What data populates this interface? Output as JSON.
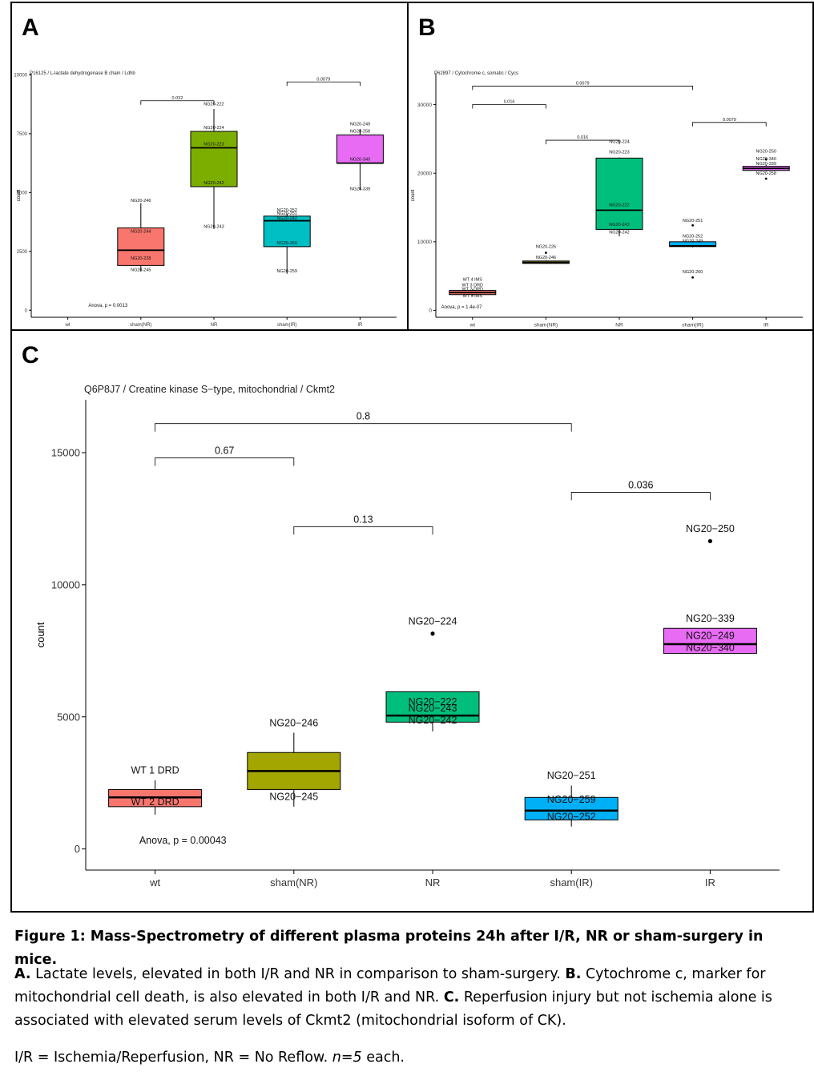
{
  "panels": {
    "A": {
      "letter": "A"
    },
    "B": {
      "letter": "B"
    },
    "C": {
      "letter": "C"
    }
  },
  "colors": {
    "wt": "#F8766D",
    "sham_NR": "#A3A500",
    "NR_A": "#7CAE00",
    "NR": "#00BF7D",
    "sham_IR_A": "#00BFC4",
    "sham_IR": "#00B0F6",
    "IR": "#E76BF3"
  },
  "chart_data": [
    {
      "type": "box",
      "panel": "A",
      "title": "P16125 / L-lactate dehydrogenase B chain / Ldhb",
      "xlabel": "",
      "ylabel": "count",
      "categories": [
        "wt",
        "sham(NR)",
        "NR",
        "sham(IR)",
        "IR"
      ],
      "ylim": [
        -300,
        10050
      ],
      "yticks": [
        0,
        2500,
        5000,
        7500,
        10000
      ],
      "boxes": [
        null,
        {
          "cat": 1,
          "whisker_low": 1650,
          "q1": 1900,
          "median": 2550,
          "q3": 3500,
          "whisker_high": 4550,
          "fill": "#F8766D"
        },
        {
          "cat": 2,
          "whisker_low": 3450,
          "q1": 5250,
          "median": 6900,
          "q3": 7600,
          "whisker_high": 8550,
          "fill": "#7CAE00"
        },
        {
          "cat": 3,
          "whisker_low": 1550,
          "q1": 2700,
          "median": 3800,
          "q3": 4000,
          "whisker_high": 4100,
          "fill": "#00BFC4"
        },
        {
          "cat": 4,
          "whisker_low": 5100,
          "q1": 6250,
          "median": 6250,
          "q3": 7450,
          "whisker_high": 7700,
          "fill": "#E76BF3"
        }
      ],
      "outliers": [],
      "point_labels": [
        {
          "cat": 1,
          "y": 4600,
          "text": "NG20-246"
        },
        {
          "cat": 1,
          "y": 3300,
          "text": "NG20-244"
        },
        {
          "cat": 1,
          "y": 2150,
          "text": "NG20-228"
        },
        {
          "cat": 1,
          "y": 1650,
          "text": "NG20-245"
        },
        {
          "cat": 2,
          "y": 8700,
          "text": "NG20-222"
        },
        {
          "cat": 2,
          "y": 7700,
          "text": "NG20-224"
        },
        {
          "cat": 2,
          "y": 7000,
          "text": "NG20-223"
        },
        {
          "cat": 2,
          "y": 5350,
          "text": "NG20-242"
        },
        {
          "cat": 2,
          "y": 3500,
          "text": "NG20-243"
        },
        {
          "cat": 3,
          "y": 4200,
          "text": "NG20-252"
        },
        {
          "cat": 3,
          "y": 4050,
          "text": "NG20-251"
        },
        {
          "cat": 3,
          "y": 3850,
          "text": "NG20-242"
        },
        {
          "cat": 3,
          "y": 2800,
          "text": "NG20-260"
        },
        {
          "cat": 3,
          "y": 1600,
          "text": "NG20-259"
        },
        {
          "cat": 4,
          "y": 7850,
          "text": "NG20-249"
        },
        {
          "cat": 4,
          "y": 7550,
          "text": "NG20-258"
        },
        {
          "cat": 4,
          "y": 6350,
          "text": "NG20-340"
        },
        {
          "cat": 4,
          "y": 5100,
          "text": "NG20-339"
        }
      ],
      "comparisons": [
        {
          "from": 1,
          "to": 2,
          "y": 8900,
          "label": "0.032"
        },
        {
          "from": 3,
          "to": 4,
          "y": 9700,
          "label": "0.0079"
        }
      ],
      "annotation": {
        "text": "Anova, p = 0.0013",
        "x": 0.55,
        "y": 150
      }
    },
    {
      "type": "box",
      "panel": "B",
      "title": "P62897 / Cytochrome c, somatic / Cycs",
      "xlabel": "",
      "ylabel": "count",
      "categories": [
        "wt",
        "sham(NR)",
        "NR",
        "sham(IR)",
        "IR"
      ],
      "ylim": [
        -1000,
        34500
      ],
      "yticks": [
        0,
        10000,
        20000,
        30000
      ],
      "boxes": [
        {
          "cat": 0,
          "whisker_low": 2100,
          "q1": 2300,
          "median": 2600,
          "q3": 2900,
          "whisker_high": 3100,
          "fill": "#F8766D"
        },
        {
          "cat": 1,
          "whisker_low": 6800,
          "q1": 6850,
          "median": 7000,
          "q3": 7200,
          "whisker_high": 7300,
          "fill": "#A3A500"
        },
        {
          "cat": 2,
          "whisker_low": 10800,
          "q1": 11800,
          "median": 14600,
          "q3": 22200,
          "whisker_high": 22300,
          "fill": "#00BF7D"
        },
        {
          "cat": 3,
          "whisker_low": 9200,
          "q1": 9300,
          "median": 9400,
          "q3": 10000,
          "whisker_high": 10100,
          "fill": "#00B0F6"
        },
        {
          "cat": 4,
          "whisker_low": 20300,
          "q1": 20400,
          "median": 20700,
          "q3": 21000,
          "whisker_high": 21200,
          "fill": "#E76BF3"
        }
      ],
      "outliers": [
        {
          "cat": 1,
          "y": 8400
        },
        {
          "cat": 3,
          "y": 12400
        },
        {
          "cat": 3,
          "y": 4800
        },
        {
          "cat": 4,
          "y": 22000
        },
        {
          "cat": 4,
          "y": 19200
        }
      ],
      "point_labels": [
        {
          "cat": 0,
          "y": 4300,
          "text": "WT 4 IMS"
        },
        {
          "cat": 0,
          "y": 3500,
          "text": "WT 3 DRD"
        },
        {
          "cat": 0,
          "y": 2900,
          "text": "WT 2 DRD"
        },
        {
          "cat": 0,
          "y": 1900,
          "text": "WT 5 IMS"
        },
        {
          "cat": 1,
          "y": 9100,
          "text": "NG20-226"
        },
        {
          "cat": 1,
          "y": 7500,
          "text": "NG20-246"
        },
        {
          "cat": 2,
          "y": 24400,
          "text": "NG20-224"
        },
        {
          "cat": 2,
          "y": 22900,
          "text": "NG20-223"
        },
        {
          "cat": 2,
          "y": 15200,
          "text": "NG20-222"
        },
        {
          "cat": 2,
          "y": 12300,
          "text": "NG20-243"
        },
        {
          "cat": 2,
          "y": 11200,
          "text": "NG20-242"
        },
        {
          "cat": 3,
          "y": 12900,
          "text": "NG20-251"
        },
        {
          "cat": 3,
          "y": 10600,
          "text": "NG20-252"
        },
        {
          "cat": 3,
          "y": 9900,
          "text": "NG20-249"
        },
        {
          "cat": 3,
          "y": 5400,
          "text": "NG20-260"
        },
        {
          "cat": 4,
          "y": 23000,
          "text": "NG20-250"
        },
        {
          "cat": 4,
          "y": 21900,
          "text": "NG20-340"
        },
        {
          "cat": 4,
          "y": 21200,
          "text": "NG20-339"
        },
        {
          "cat": 4,
          "y": 19800,
          "text": "NG20-258"
        }
      ],
      "comparisons": [
        {
          "from": 0,
          "to": 3,
          "y": 32700,
          "label": "0.0079"
        },
        {
          "from": 0,
          "to": 1,
          "y": 30000,
          "label": "0.016"
        },
        {
          "from": 1,
          "to": 2,
          "y": 24800,
          "label": "0.016"
        },
        {
          "from": 3,
          "to": 4,
          "y": 27400,
          "label": "0.0079"
        }
      ],
      "annotation": {
        "text": "Anova, p = 1.4e-07",
        "x": -0.15,
        "y": 300
      }
    },
    {
      "type": "box",
      "panel": "C",
      "title": "Q6P8J7 / Creatine kinase S−type, mitochondrial / Ckmt2",
      "xlabel": "",
      "ylabel": "count",
      "categories": [
        "wt",
        "sham(NR)",
        "NR",
        "sham(IR)",
        "IR"
      ],
      "ylim": [
        -800,
        17000
      ],
      "yticks": [
        0,
        5000,
        10000,
        15000
      ],
      "boxes": [
        {
          "cat": 0,
          "whisker_low": 1300,
          "q1": 1600,
          "median": 1950,
          "q3": 2250,
          "whisker_high": 2600,
          "fill": "#F8766D"
        },
        {
          "cat": 1,
          "whisker_low": 1600,
          "q1": 2250,
          "median": 2950,
          "q3": 3650,
          "whisker_high": 4400,
          "fill": "#A3A500"
        },
        {
          "cat": 2,
          "whisker_low": 4450,
          "q1": 4800,
          "median": 5050,
          "q3": 5950,
          "whisker_high": 5950,
          "fill": "#00BF7D"
        },
        {
          "cat": 3,
          "whisker_low": 850,
          "q1": 1100,
          "median": 1450,
          "q3": 1950,
          "whisker_high": 2400,
          "fill": "#00B0F6"
        },
        {
          "cat": 4,
          "whisker_low": 7400,
          "q1": 7400,
          "median": 7750,
          "q3": 8350,
          "whisker_high": 8350,
          "fill": "#E76BF3"
        }
      ],
      "outliers": [
        {
          "cat": 2,
          "y": 8150
        },
        {
          "cat": 4,
          "y": 11650
        }
      ],
      "point_labels": [
        {
          "cat": 0,
          "y": 2850,
          "text": "WT 1 DRD"
        },
        {
          "cat": 0,
          "y": 1650,
          "text": "WT 2 DRD"
        },
        {
          "cat": 1,
          "y": 4650,
          "text": "NG20−246"
        },
        {
          "cat": 1,
          "y": 1850,
          "text": "NG20−245"
        },
        {
          "cat": 2,
          "y": 8500,
          "text": "NG20−224"
        },
        {
          "cat": 2,
          "y": 5450,
          "text": "NG20−222"
        },
        {
          "cat": 2,
          "y": 5200,
          "text": "NG20−243"
        },
        {
          "cat": 2,
          "y": 4750,
          "text": "NG20−242"
        },
        {
          "cat": 3,
          "y": 2650,
          "text": "NG20−251"
        },
        {
          "cat": 3,
          "y": 1750,
          "text": "NG20−259"
        },
        {
          "cat": 3,
          "y": 1100,
          "text": "NG20−252"
        },
        {
          "cat": 4,
          "y": 12000,
          "text": "NG20−250"
        },
        {
          "cat": 4,
          "y": 8600,
          "text": "NG20−339"
        },
        {
          "cat": 4,
          "y": 7950,
          "text": "NG20−249"
        },
        {
          "cat": 4,
          "y": 7500,
          "text": "NG20−340"
        }
      ],
      "comparisons": [
        {
          "from": 0,
          "to": 3,
          "y": 16100,
          "label": "0.8"
        },
        {
          "from": 0,
          "to": 1,
          "y": 14800,
          "label": "0.67"
        },
        {
          "from": 1,
          "to": 2,
          "y": 12200,
          "label": "0.13"
        },
        {
          "from": 3,
          "to": 4,
          "y": 13500,
          "label": "0.036"
        }
      ],
      "annotation": {
        "text": "Anova, p = 0.00043",
        "x": 0.2,
        "y": 200
      }
    }
  ],
  "caption": {
    "title": "Figure 1: Mass-Spectrometry of different plasma proteins 24h after I/R, NR or sham-surgery in mice.",
    "a_label": "A.",
    "a_text": " Lactate levels, elevated in both I/R and NR in comparison to sham-surgery. ",
    "b_label": "B.",
    "b_text": " Cytochrome c, marker for mitochondrial cell death, is also elevated in both I/R and NR. ",
    "c_label": "C.",
    "c_text": " Reperfusion injury but not ischemia alone is associated with elevated serum levels of Ckmt2 (mitochondrial isoform of CK).",
    "abbr_text": "I/R = Ischemia/Reperfusion, NR = No Reflow. ",
    "n_text": "n=5",
    "each_text": " each."
  }
}
